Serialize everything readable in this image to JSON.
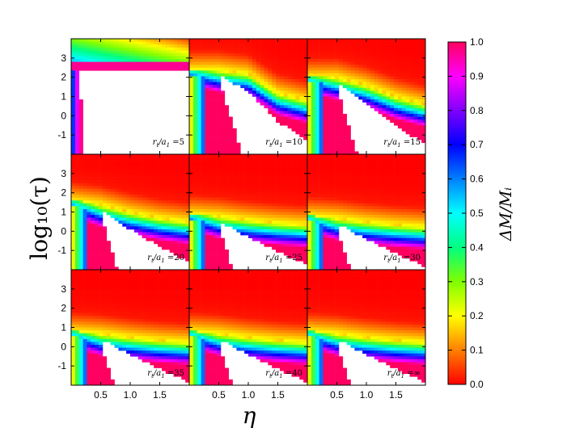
{
  "chart_data": {
    "type": "heatmap",
    "xlabel": "η",
    "ylabel": "log₁₀(τ)",
    "x_ticks": [
      "0.5",
      "1.0",
      "1.5"
    ],
    "y_ticks": [
      "-1",
      "0",
      "1",
      "2",
      "3"
    ],
    "xlim": [
      0.0,
      2.0
    ],
    "ylim": [
      -2.0,
      4.0
    ],
    "colorbar": {
      "label": "ΔM/Mᵢ",
      "range": [
        0.0,
        1.0
      ],
      "ticks": [
        "0.0",
        "0.1",
        "0.2",
        "0.3",
        "0.4",
        "0.5",
        "0.6",
        "0.7",
        "0.8",
        "0.9",
        "1.0"
      ],
      "colormap": [
        "#ff0000",
        "#ff8000",
        "#ffff00",
        "#80ff00",
        "#00ff80",
        "#00ffff",
        "#0080ff",
        "#0000ff",
        "#8000ff",
        "#ff00ff",
        "#ff0060"
      ]
    },
    "panels": [
      {
        "label": "r_t/a_1 = 5",
        "label_main": "r",
        "label_sub1": "t",
        "label_mid": "/a",
        "label_sub2": "1",
        "label_tail": " =5",
        "boundary": [
          3.9,
          3.9,
          3.9,
          3.9,
          3.9
        ],
        "escape_eta": 0.12,
        "upper_band": [
          2.4,
          2.8
        ]
      },
      {
        "label": "r_t/a_1 = 10",
        "label_main": "r",
        "label_sub1": "t",
        "label_mid": "/a",
        "label_sub2": "1",
        "label_tail": " =10",
        "boundary": [
          2.4,
          2.4,
          2.2,
          1.2,
          0.8
        ]
      },
      {
        "label": "r_t/a_1 = 15",
        "label_main": "r",
        "label_sub1": "t",
        "label_mid": "/a",
        "label_sub2": "1",
        "label_tail": " =15",
        "boundary": [
          2.0,
          2.0,
          1.6,
          1.0,
          0.6
        ]
      },
      {
        "label": "r_t/a_1 = 20",
        "label_main": "r",
        "label_sub1": "t",
        "label_mid": "/a",
        "label_sub2": "1",
        "label_tail": " =20",
        "boundary": [
          1.6,
          1.4,
          1.0,
          0.7,
          0.5
        ]
      },
      {
        "label": "r_t/a_1 = 25",
        "label_main": "r",
        "label_sub1": "t",
        "label_mid": "/a",
        "label_sub2": "1",
        "label_tail": " =25",
        "boundary": [
          0.9,
          0.8,
          0.6,
          0.45,
          0.35
        ]
      },
      {
        "label": "r_t/a_1 = 30",
        "label_main": "r",
        "label_sub1": "t",
        "label_mid": "/a",
        "label_sub2": "1",
        "label_tail": " =30",
        "boundary": [
          0.8,
          0.7,
          0.5,
          0.35,
          0.25
        ]
      },
      {
        "label": "r_t/a_1 = 35",
        "label_main": "r",
        "label_sub1": "t",
        "label_mid": "/a",
        "label_sub2": "1",
        "label_tail": " =35",
        "boundary": [
          0.8,
          0.7,
          0.5,
          0.35,
          0.25
        ]
      },
      {
        "label": "r_t/a_1 = 40",
        "label_main": "r",
        "label_sub1": "t",
        "label_mid": "/a",
        "label_sub2": "1",
        "label_tail": " =40",
        "boundary": [
          0.8,
          0.7,
          0.5,
          0.35,
          0.25
        ]
      },
      {
        "label": "r_t/a_1 = ∞",
        "label_main": "r",
        "label_sub1": "t",
        "label_mid": "/a",
        "label_sub2": "1",
        "label_tail": " =∞",
        "boundary": [
          0.8,
          0.7,
          0.5,
          0.35,
          0.25
        ]
      }
    ]
  }
}
